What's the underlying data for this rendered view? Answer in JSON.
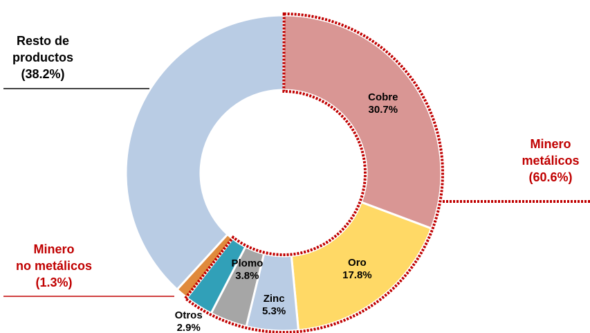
{
  "chart_data": {
    "type": "donut",
    "categories": [
      "Cobre",
      "Oro",
      "Zinc",
      "Plomo",
      "Otros",
      "Minero\nno metálicos",
      "Resto de\nproductos"
    ],
    "values": [
      30.7,
      17.8,
      5.3,
      3.8,
      2.9,
      1.3,
      38.2
    ],
    "value_labels": [
      "30.7%",
      "17.8%",
      "5.3%",
      "3.8%",
      "2.9%",
      "(1.3%)",
      "(38.2%)"
    ],
    "colors": [
      "#d99694",
      "#ffd966",
      "#b9cce4",
      "#a6a6a6",
      "#31a0b8",
      "#e08a3c",
      "#b9cce4"
    ],
    "groups": [
      {
        "name": "Minero\nmetálicos",
        "value": 60.6,
        "value_label": "(60.6%)",
        "color": "#c00000"
      }
    ]
  }
}
